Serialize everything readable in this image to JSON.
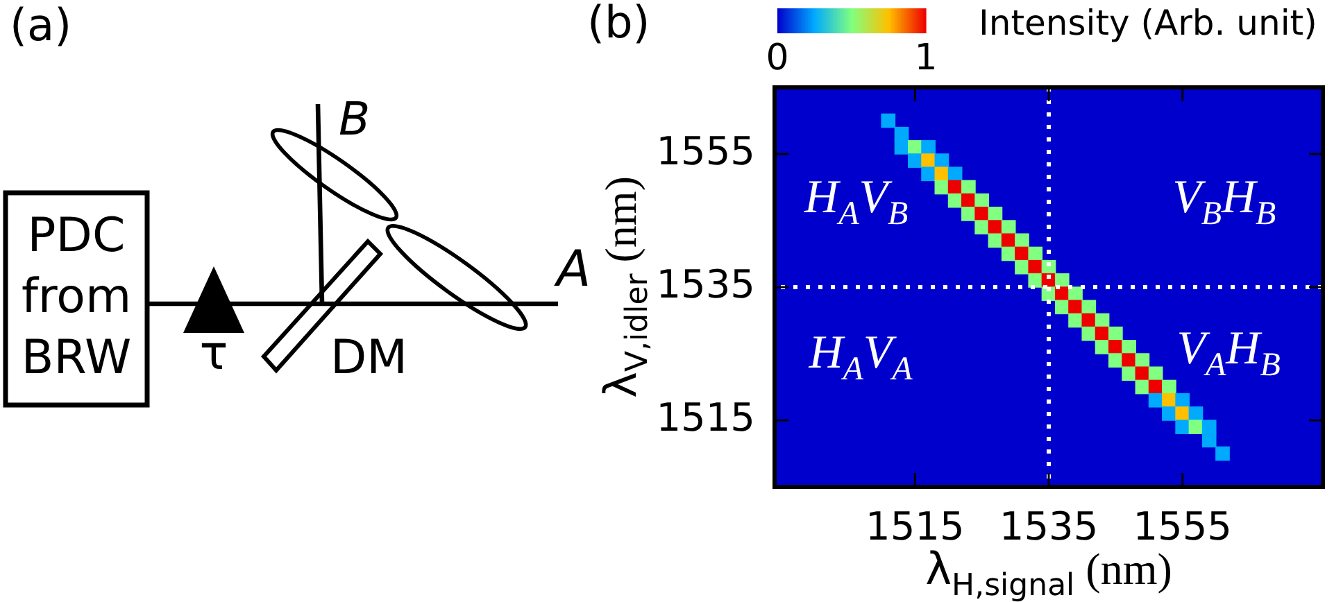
{
  "chart_data": [
    {
      "type": "other",
      "title": "(a)",
      "annotations": [
        "PDC from BRW",
        "τ",
        "DM",
        "A",
        "B"
      ]
    },
    {
      "type": "scatter",
      "title": "(b)",
      "xlabel": "λ$_{H,signal}$ (nm)",
      "ylabel": "λ$_{V,idler}$ (nm)",
      "clabel": "Intensity (Arb. unit)",
      "clim": [
        0,
        1
      ],
      "cticks": [
        0,
        1
      ],
      "xlim": [
        1494,
        1576
      ],
      "ylim": [
        1505,
        1565
      ],
      "xticks": [
        1515,
        1535,
        1555
      ],
      "yticks": [
        1515,
        1535,
        1555
      ],
      "marker": "square",
      "ref_lines": [
        {
          "axis": "x",
          "value": 1535,
          "color": "#ffffff",
          "line_style": "dotted"
        },
        {
          "axis": "y",
          "value": 1535,
          "color": "#ffffff",
          "line_style": "dotted"
        }
      ],
      "annotations": [
        "H$_{A}$V$_{B}$",
        "V$_{B}$H$_{B}$",
        "H$_{A}$V$_{A}$",
        "V$_{A}$H$_{B}$"
      ],
      "x": [
        1511,
        1513,
        1513,
        1515,
        1517,
        1515,
        1517,
        1519,
        1517,
        1519,
        1521,
        1519,
        1521,
        1523,
        1521,
        1523,
        1525,
        1523,
        1525,
        1527,
        1525,
        1527,
        1529,
        1527,
        1529,
        1531,
        1529,
        1531,
        1533,
        1531,
        1533,
        1535,
        1533,
        1535,
        1537,
        1535,
        1537,
        1539,
        1537,
        1539,
        1541,
        1539,
        1541,
        1543,
        1541,
        1543,
        1545,
        1543,
        1545,
        1547,
        1545,
        1547,
        1549,
        1547,
        1549,
        1551,
        1549,
        1551,
        1553,
        1551,
        1553,
        1555,
        1553,
        1555,
        1557,
        1555,
        1557,
        1559,
        1559,
        1561
      ],
      "values": [
        1560,
        1558,
        1556,
        1556,
        1556,
        1554,
        1554,
        1554,
        1552,
        1552,
        1552,
        1550,
        1550,
        1550,
        1548,
        1548,
        1548,
        1546,
        1546,
        1546,
        1544,
        1544,
        1544,
        1542,
        1542,
        1542,
        1540,
        1540,
        1540,
        1538,
        1538,
        1538,
        1536,
        1536,
        1536,
        1534,
        1534,
        1534,
        1532,
        1532,
        1532,
        1530,
        1530,
        1530,
        1528,
        1528,
        1528,
        1526,
        1526,
        1526,
        1524,
        1524,
        1524,
        1522,
        1522,
        1522,
        1520,
        1520,
        1520,
        1518,
        1518,
        1518,
        1516,
        1516,
        1516,
        1514,
        1514,
        1514,
        1512,
        1510
      ],
      "cvalues": [
        0.25,
        0.25,
        0.25,
        0.5,
        0.25,
        0.25,
        0.75,
        0.25,
        0.25,
        0.75,
        0.25,
        0.5,
        1,
        0.5,
        0.5,
        1,
        0.5,
        0.5,
        1,
        0.5,
        0.5,
        1,
        0.5,
        0.5,
        1,
        0.5,
        0.5,
        1,
        0.5,
        0.5,
        1,
        0.5,
        0.5,
        1,
        0.5,
        0.5,
        1,
        0.5,
        0.5,
        1,
        0.5,
        0.5,
        1,
        0.5,
        0.5,
        1,
        0.5,
        0.5,
        1,
        0.5,
        0.5,
        1,
        0.5,
        0.5,
        1,
        0.5,
        0.5,
        1,
        0.5,
        0.25,
        0.75,
        0.25,
        0.25,
        0.75,
        0.25,
        0.25,
        0.5,
        0.25,
        0.25,
        0.25
      ]
    }
  ]
}
